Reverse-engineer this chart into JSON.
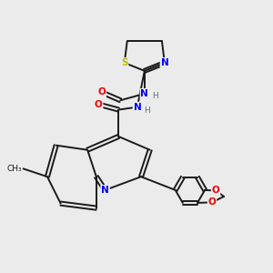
{
  "background_color": "#ebebeb",
  "bond_color": "#1a1a1a",
  "atom_colors": {
    "N": "#0000ee",
    "O": "#ee0000",
    "S": "#bbbb00",
    "C": "#1a1a1a",
    "H": "#607080"
  },
  "figsize": [
    3.0,
    3.0
  ],
  "dpi": 100
}
